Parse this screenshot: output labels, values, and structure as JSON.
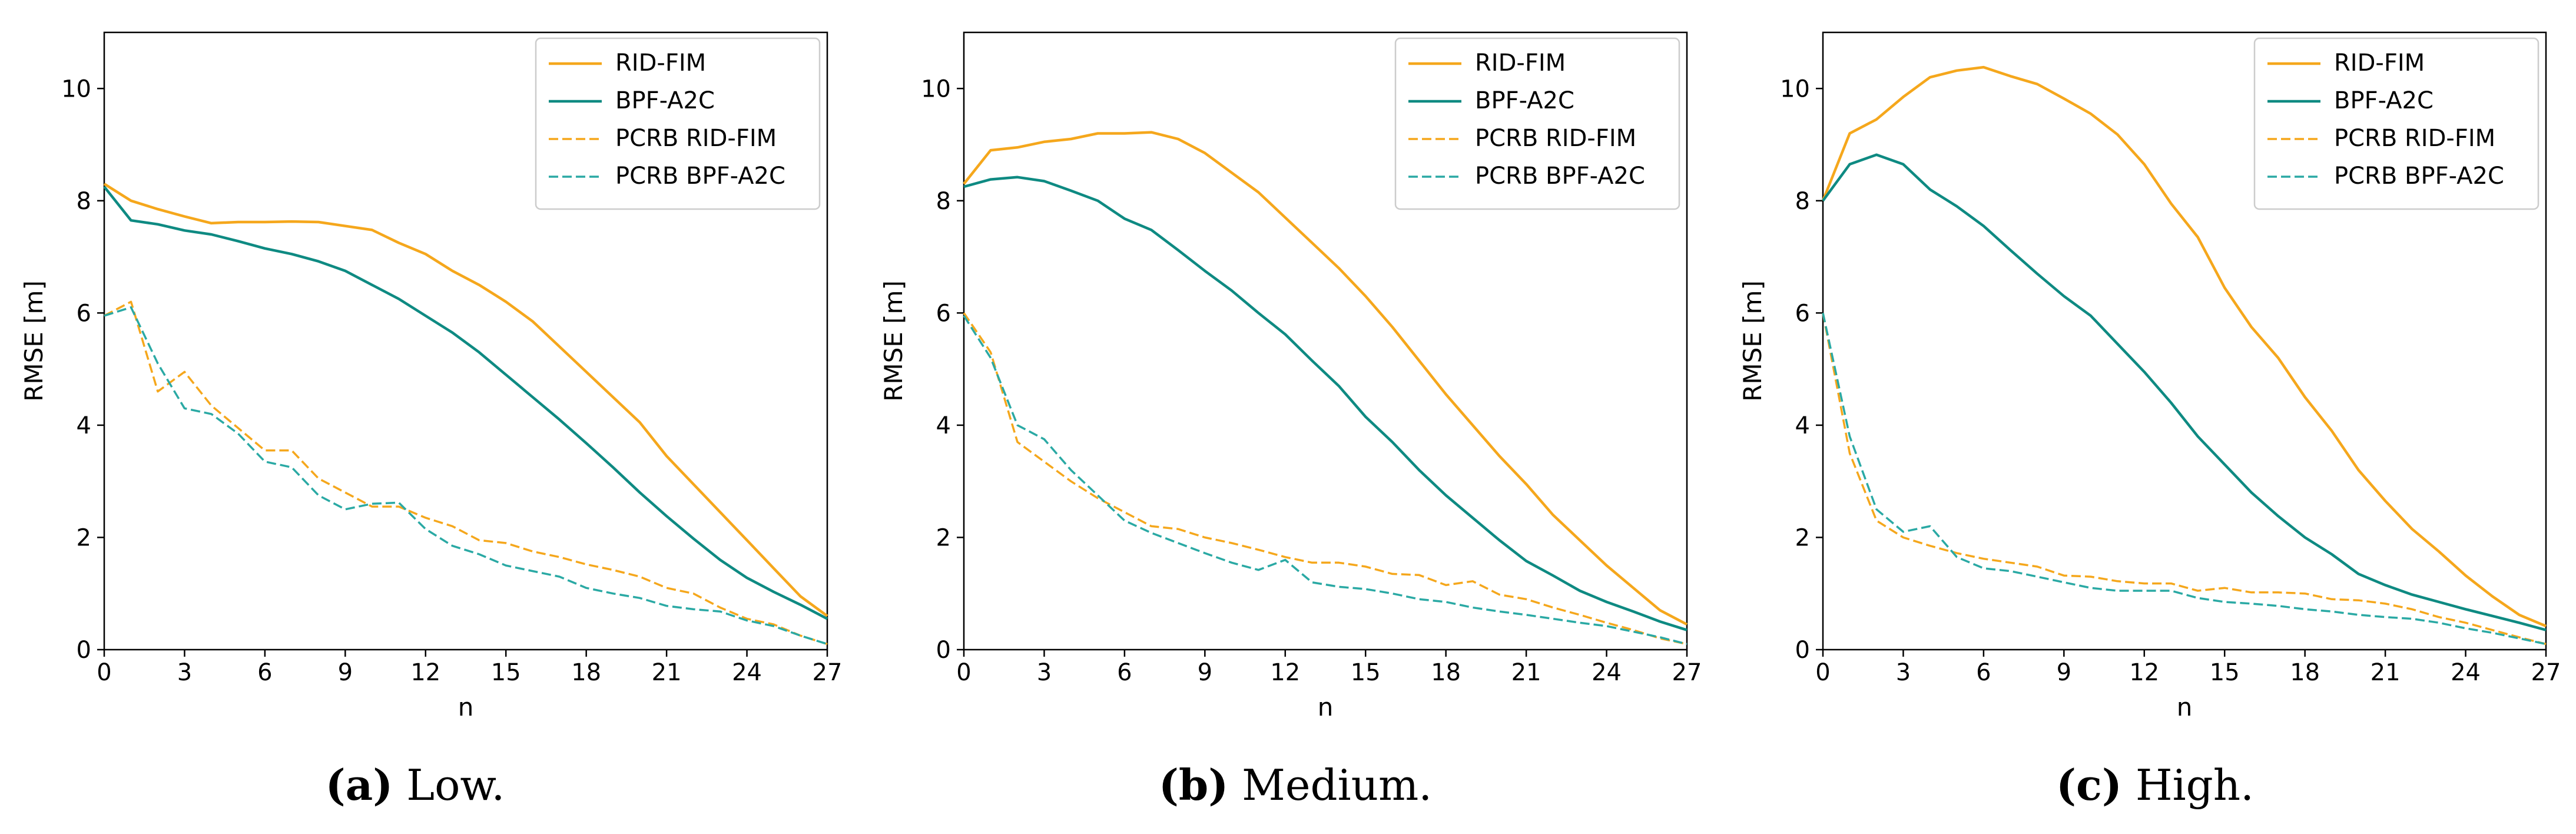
{
  "colors": {
    "rid_fim": "#f5a71c",
    "bpf_a2c": "#0e8a82",
    "pcrb_bpf_a2c": "#2aa9a4",
    "axis": "#000000",
    "legend_border": "#cccccc"
  },
  "legend": {
    "entries": [
      "RID-FIM",
      "BPF-A2C",
      "PCRB RID-FIM",
      "PCRB BPF-A2C"
    ]
  },
  "chart_data": [
    {
      "type": "line",
      "title": "",
      "xlabel": "n",
      "ylabel": "RMSE [m]",
      "xlim": [
        0,
        27
      ],
      "ylim": [
        0,
        11
      ],
      "xticks": [
        0,
        3,
        6,
        9,
        12,
        15,
        18,
        21,
        24,
        27
      ],
      "yticks": [
        0,
        2,
        4,
        6,
        8,
        10
      ],
      "x": [
        0,
        1,
        2,
        3,
        4,
        5,
        6,
        7,
        8,
        9,
        10,
        11,
        12,
        13,
        14,
        15,
        16,
        17,
        18,
        19,
        20,
        21,
        22,
        23,
        24,
        25,
        26,
        27
      ],
      "series": [
        {
          "name": "RID-FIM",
          "style": "solid",
          "color_key": "rid_fim",
          "values": [
            8.3,
            8.0,
            7.85,
            7.72,
            7.6,
            7.62,
            7.62,
            7.63,
            7.62,
            7.55,
            7.48,
            7.25,
            7.05,
            6.75,
            6.5,
            6.2,
            5.85,
            5.4,
            4.95,
            4.5,
            4.05,
            3.45,
            2.95,
            2.45,
            1.95,
            1.45,
            0.95,
            0.6
          ]
        },
        {
          "name": "BPF-A2C",
          "style": "solid",
          "color_key": "bpf_a2c",
          "values": [
            8.25,
            7.65,
            7.58,
            7.47,
            7.4,
            7.28,
            7.15,
            7.05,
            6.92,
            6.75,
            6.5,
            6.25,
            5.95,
            5.65,
            5.3,
            4.9,
            4.5,
            4.1,
            3.68,
            3.25,
            2.8,
            2.38,
            1.98,
            1.6,
            1.28,
            1.03,
            0.8,
            0.55
          ]
        },
        {
          "name": "PCRB RID-FIM",
          "style": "dashed",
          "color_key": "rid_fim",
          "values": [
            5.95,
            6.2,
            4.6,
            4.95,
            4.35,
            3.95,
            3.55,
            3.55,
            3.05,
            2.8,
            2.55,
            2.55,
            2.35,
            2.2,
            1.95,
            1.9,
            1.75,
            1.65,
            1.52,
            1.42,
            1.3,
            1.1,
            1.0,
            0.75,
            0.55,
            0.45,
            0.25,
            0.1
          ]
        },
        {
          "name": "PCRB BPF-A2C",
          "style": "dashed",
          "color_key": "pcrb_bpf_a2c",
          "values": [
            5.95,
            6.1,
            5.1,
            4.3,
            4.2,
            3.85,
            3.35,
            3.25,
            2.75,
            2.5,
            2.6,
            2.62,
            2.15,
            1.85,
            1.7,
            1.5,
            1.4,
            1.3,
            1.1,
            1.0,
            0.92,
            0.78,
            0.72,
            0.68,
            0.52,
            0.42,
            0.25,
            0.1
          ]
        }
      ],
      "caption_label": "(a)",
      "caption_text": " Low."
    },
    {
      "type": "line",
      "title": "",
      "xlabel": "n",
      "ylabel": "RMSE [m]",
      "xlim": [
        0,
        27
      ],
      "ylim": [
        0,
        11
      ],
      "xticks": [
        0,
        3,
        6,
        9,
        12,
        15,
        18,
        21,
        24,
        27
      ],
      "yticks": [
        0,
        2,
        4,
        6,
        8,
        10
      ],
      "x": [
        0,
        1,
        2,
        3,
        4,
        5,
        6,
        7,
        8,
        9,
        10,
        11,
        12,
        13,
        14,
        15,
        16,
        17,
        18,
        19,
        20,
        21,
        22,
        23,
        24,
        25,
        26,
        27
      ],
      "series": [
        {
          "name": "RID-FIM",
          "style": "solid",
          "color_key": "rid_fim",
          "values": [
            8.3,
            8.9,
            8.95,
            9.05,
            9.1,
            9.2,
            9.2,
            9.22,
            9.1,
            8.85,
            8.5,
            8.15,
            7.7,
            7.25,
            6.8,
            6.3,
            5.75,
            5.15,
            4.55,
            4.0,
            3.45,
            2.95,
            2.4,
            1.95,
            1.5,
            1.1,
            0.7,
            0.45
          ]
        },
        {
          "name": "BPF-A2C",
          "style": "solid",
          "color_key": "bpf_a2c",
          "values": [
            8.25,
            8.38,
            8.42,
            8.35,
            8.18,
            8.0,
            7.68,
            7.48,
            7.12,
            6.75,
            6.4,
            6.0,
            5.62,
            5.15,
            4.7,
            4.15,
            3.7,
            3.2,
            2.75,
            2.35,
            1.95,
            1.58,
            1.32,
            1.05,
            0.85,
            0.68,
            0.5,
            0.35
          ]
        },
        {
          "name": "PCRB RID-FIM",
          "style": "dashed",
          "color_key": "rid_fim",
          "values": [
            6.0,
            5.3,
            3.7,
            3.35,
            3.0,
            2.7,
            2.45,
            2.2,
            2.15,
            2.0,
            1.9,
            1.78,
            1.65,
            1.55,
            1.55,
            1.48,
            1.35,
            1.33,
            1.15,
            1.22,
            0.98,
            0.9,
            0.75,
            0.62,
            0.48,
            0.35,
            0.2,
            0.1
          ]
        },
        {
          "name": "PCRB BPF-A2C",
          "style": "dashed",
          "color_key": "pcrb_bpf_a2c",
          "values": [
            5.95,
            5.2,
            4.0,
            3.75,
            3.2,
            2.75,
            2.3,
            2.08,
            1.9,
            1.72,
            1.55,
            1.42,
            1.6,
            1.2,
            1.12,
            1.08,
            1.0,
            0.9,
            0.85,
            0.75,
            0.68,
            0.62,
            0.55,
            0.48,
            0.42,
            0.32,
            0.22,
            0.1
          ]
        }
      ],
      "caption_label": "(b)",
      "caption_text": " Medium."
    },
    {
      "type": "line",
      "title": "",
      "xlabel": "n",
      "ylabel": "RMSE [m]",
      "xlim": [
        0,
        27
      ],
      "ylim": [
        0,
        11
      ],
      "xticks": [
        0,
        3,
        6,
        9,
        12,
        15,
        18,
        21,
        24,
        27
      ],
      "yticks": [
        0,
        2,
        4,
        6,
        8,
        10
      ],
      "x": [
        0,
        1,
        2,
        3,
        4,
        5,
        6,
        7,
        8,
        9,
        10,
        11,
        12,
        13,
        14,
        15,
        16,
        17,
        18,
        19,
        20,
        21,
        22,
        23,
        24,
        25,
        26,
        27
      ],
      "series": [
        {
          "name": "RID-FIM",
          "style": "solid",
          "color_key": "rid_fim",
          "values": [
            8.0,
            9.2,
            9.45,
            9.85,
            10.2,
            10.32,
            10.38,
            10.22,
            10.08,
            9.82,
            9.55,
            9.18,
            8.65,
            7.95,
            7.35,
            6.45,
            5.75,
            5.2,
            4.5,
            3.9,
            3.2,
            2.65,
            2.15,
            1.75,
            1.32,
            0.95,
            0.62,
            0.42
          ]
        },
        {
          "name": "BPF-A2C",
          "style": "solid",
          "color_key": "bpf_a2c",
          "values": [
            8.0,
            8.65,
            8.82,
            8.65,
            8.2,
            7.9,
            7.55,
            7.12,
            6.7,
            6.3,
            5.95,
            5.45,
            4.95,
            4.4,
            3.8,
            3.3,
            2.8,
            2.38,
            2.0,
            1.7,
            1.35,
            1.15,
            0.98,
            0.85,
            0.72,
            0.6,
            0.48,
            0.35
          ]
        },
        {
          "name": "PCRB RID-FIM",
          "style": "dashed",
          "color_key": "rid_fim",
          "values": [
            6.0,
            3.5,
            2.3,
            2.0,
            1.85,
            1.72,
            1.62,
            1.55,
            1.48,
            1.32,
            1.3,
            1.22,
            1.18,
            1.18,
            1.05,
            1.1,
            1.02,
            1.02,
            1.0,
            0.9,
            0.88,
            0.82,
            0.72,
            0.58,
            0.48,
            0.35,
            0.22,
            0.1
          ]
        },
        {
          "name": "PCRB BPF-A2C",
          "style": "dashed",
          "color_key": "pcrb_bpf_a2c",
          "values": [
            6.0,
            3.8,
            2.5,
            2.1,
            2.2,
            1.65,
            1.45,
            1.4,
            1.3,
            1.2,
            1.1,
            1.05,
            1.05,
            1.05,
            0.92,
            0.85,
            0.82,
            0.78,
            0.72,
            0.68,
            0.62,
            0.58,
            0.55,
            0.48,
            0.38,
            0.3,
            0.2,
            0.1
          ]
        }
      ],
      "caption_label": "(c)",
      "caption_text": " High."
    }
  ]
}
